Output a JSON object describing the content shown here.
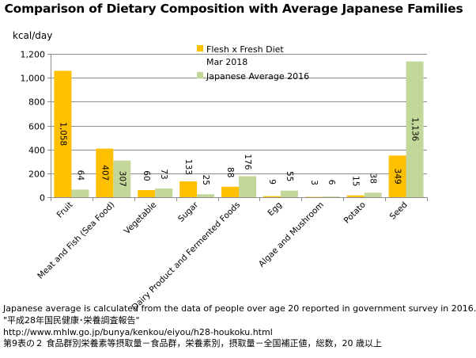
{
  "chart_data": {
    "type": "bar",
    "title": "Comparison of Dietary Composition with Average Japanese Families",
    "ylabel": "kcal/day",
    "ylim": [
      0,
      1200
    ],
    "yticks": [
      "0",
      "200",
      "400",
      "600",
      "800",
      "1,000",
      "1,200"
    ],
    "ytick_values": [
      0,
      200,
      400,
      600,
      800,
      1000,
      1200
    ],
    "grid": true,
    "legend_position": "top-right",
    "categories": [
      "Fruit",
      "Meat and Fish (Sea Food)",
      "Vegetable",
      "Sugar",
      "Dairy Product and Fermented Foods",
      "Egg",
      "Algae and Mushroom",
      "Potato",
      "Seed"
    ],
    "series": [
      {
        "name": "Flesh x Fresh Diet",
        "name_line2": "Mar 2018",
        "color": "#FFC000",
        "values": [
          1058,
          407,
          60,
          133,
          88,
          9,
          3,
          15,
          349
        ],
        "labels": [
          "1,058",
          "407",
          "60",
          "133",
          "88",
          "9",
          "3",
          "15",
          "349"
        ]
      },
      {
        "name": "Japanese Average 2016",
        "color": "#C4D79B",
        "values": [
          64,
          307,
          73,
          25,
          176,
          55,
          6,
          38,
          1136
        ],
        "labels": [
          "64",
          "307",
          "73",
          "25",
          "176",
          "55",
          "6",
          "38",
          "1,136"
        ]
      }
    ]
  },
  "notes": {
    "line1": "Japanese average is calculated from the data of people over age 20 reported in government survey in 2016.",
    "line2": "\"平成28年国民健康･栄養調査報告\"",
    "line3": "http://www.mhlw.go.jp/bunya/kenkou/eiyou/h28-houkoku.html",
    "line4": "第9表の２ 食品群別栄養素等摂取量－食品群，栄養素別，摂取量－全国補正値，総数，20 歳以上"
  }
}
